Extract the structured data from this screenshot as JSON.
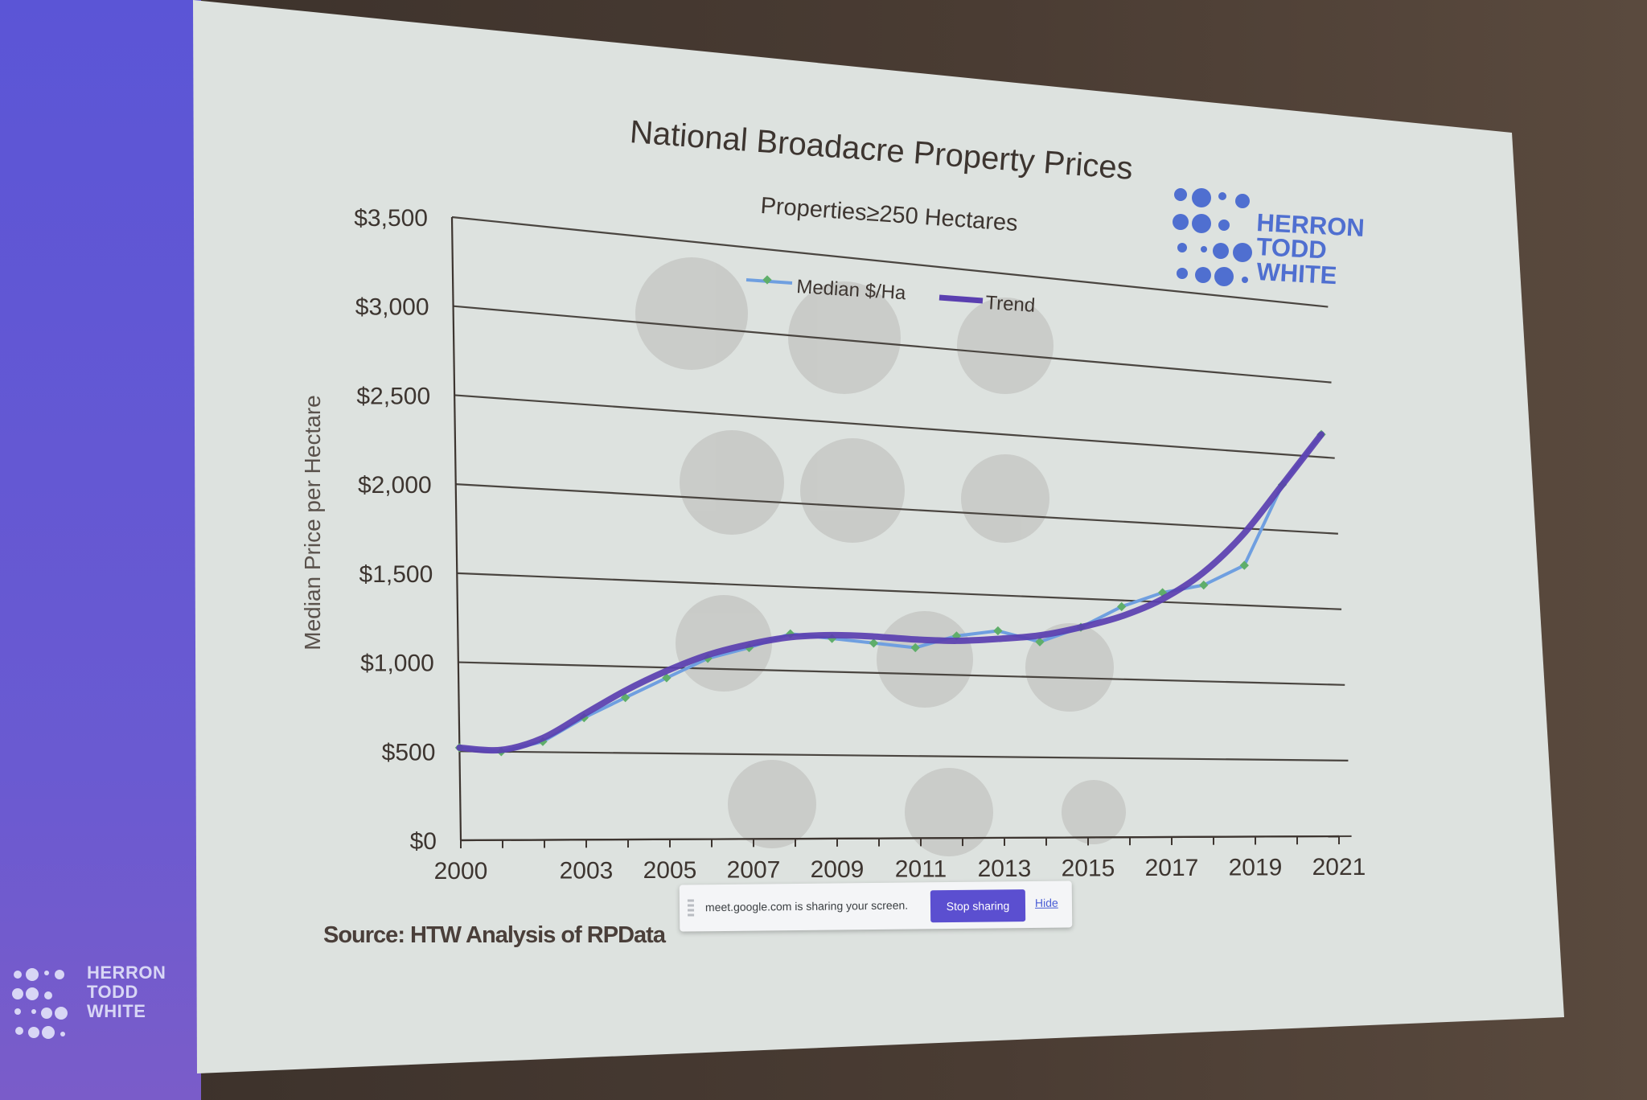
{
  "slide": {
    "logo": {
      "lines": [
        "HERRON",
        "TODD",
        "WHITE"
      ]
    },
    "footer_logo": {
      "lines": [
        "HERRON",
        "TODD",
        "WHITE"
      ]
    },
    "source": "Source: HTW Analysis of RPData"
  },
  "share_bar": {
    "message": "meet.google.com is sharing your screen.",
    "stop_label": "Stop sharing",
    "hide_label": "Hide"
  },
  "chart_data": {
    "type": "line",
    "title": "National Broadacre Property Prices",
    "subtitle": "Properties≥250 Hectares",
    "ylabel": "Median Price per Hectare",
    "xlabel": "",
    "xlim": [
      2000,
      2021
    ],
    "ylim": [
      0,
      3500
    ],
    "y_ticks": [
      "$0",
      "$500",
      "$1,000",
      "$1,500",
      "$2,000",
      "$2,500",
      "$3,000",
      "$3,500"
    ],
    "y_tick_values": [
      0,
      500,
      1000,
      1500,
      2000,
      2500,
      3000,
      3500
    ],
    "x_tick_labels": [
      "2000",
      "2003",
      "2005",
      "2007",
      "2009",
      "2011",
      "2013",
      "2015",
      "2017",
      "2019",
      "2021"
    ],
    "x_tick_values": [
      2000,
      2003,
      2005,
      2007,
      2009,
      2011,
      2013,
      2015,
      2017,
      2019,
      2021
    ],
    "grid": true,
    "legend_position": "top-center",
    "series": [
      {
        "name": "Median $/Ha",
        "color": "#6f9fe0",
        "marker": "diamond",
        "x": [
          2000,
          2001,
          2002,
          2003,
          2004,
          2005,
          2006,
          2007,
          2008,
          2009,
          2010,
          2011,
          2012,
          2013,
          2014,
          2015,
          2016,
          2017,
          2018,
          2019,
          2020,
          2021
        ],
        "values": [
          520,
          500,
          560,
          700,
          820,
          940,
          1060,
          1130,
          1220,
          1200,
          1180,
          1160,
          1240,
          1280,
          1220,
          1320,
          1460,
          1560,
          1620,
          1760,
          2300,
          2650
        ]
      },
      {
        "name": "Trend",
        "color": "#5a3fb0",
        "x": [
          2000,
          2001,
          2002,
          2003,
          2004,
          2005,
          2006,
          2007,
          2008,
          2009,
          2010,
          2011,
          2012,
          2013,
          2014,
          2015,
          2016,
          2017,
          2018,
          2019,
          2020,
          2021
        ],
        "values": [
          520,
          510,
          580,
          720,
          860,
          980,
          1080,
          1150,
          1200,
          1220,
          1220,
          1210,
          1210,
          1230,
          1260,
          1320,
          1400,
          1520,
          1700,
          1960,
          2300,
          2650
        ]
      }
    ]
  },
  "colors": {
    "brand_bar": "#6356d4",
    "slide_bg": "#dfe3e1",
    "logo_blue": "#4f6fd0",
    "footer_logo": "#d8d6f5",
    "grid": "#4a4540"
  }
}
